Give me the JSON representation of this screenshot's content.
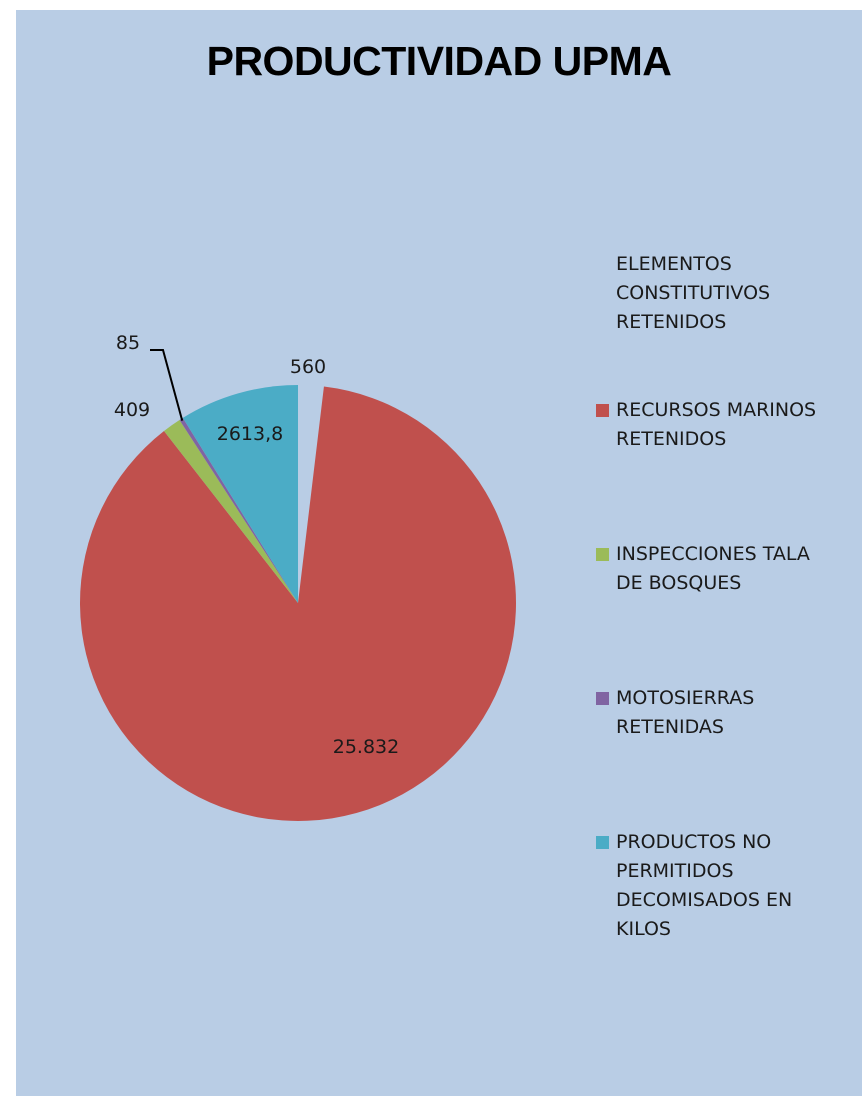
{
  "chart_data": {
    "type": "pie",
    "title": "PRODUCTIVIDAD UPMA",
    "slices": [
      {
        "label": "ELEMENTOS CONSTITUTIVOS RETENIDOS",
        "value": 560,
        "value_label": "560",
        "color": "#b9cde5"
      },
      {
        "label": "RECURSOS MARINOS RETENIDOS",
        "value": 25832,
        "value_label": "25.832",
        "color": "#c0504d"
      },
      {
        "label": "INSPECCIONES TALA DE BOSQUES",
        "value": 409,
        "value_label": "409",
        "color": "#9bbb59"
      },
      {
        "label": "MOTOSIERRAS RETENIDAS",
        "value": 85,
        "value_label": "85",
        "color": "#8064a2"
      },
      {
        "label": "PRODUCTOS NO PERMITIDOS DECOMISADOS EN KILOS",
        "value": 2613.8,
        "value_label": "2613,8",
        "color": "#4bacc6"
      }
    ],
    "legend_position": "right"
  },
  "legend": [
    {
      "lines": [
        "ELEMENTOS",
        "CONSTITUTIVOS",
        "RETENIDOS"
      ],
      "color": "#b9cde5"
    },
    {
      "lines": [
        "RECURSOS MARINOS",
        "RETENIDOS"
      ],
      "color": "#c0504d"
    },
    {
      "lines": [
        "INSPECCIONES TALA",
        "DE BOSQUES"
      ],
      "color": "#9bbb59"
    },
    {
      "lines": [
        "MOTOSIERRAS",
        "RETENIDAS"
      ],
      "color": "#8064a2"
    },
    {
      "lines": [
        "PRODUCTOS NO",
        "PERMITIDOS",
        "DECOMISADOS EN",
        "KILOS"
      ],
      "color": "#4bacc6"
    }
  ]
}
